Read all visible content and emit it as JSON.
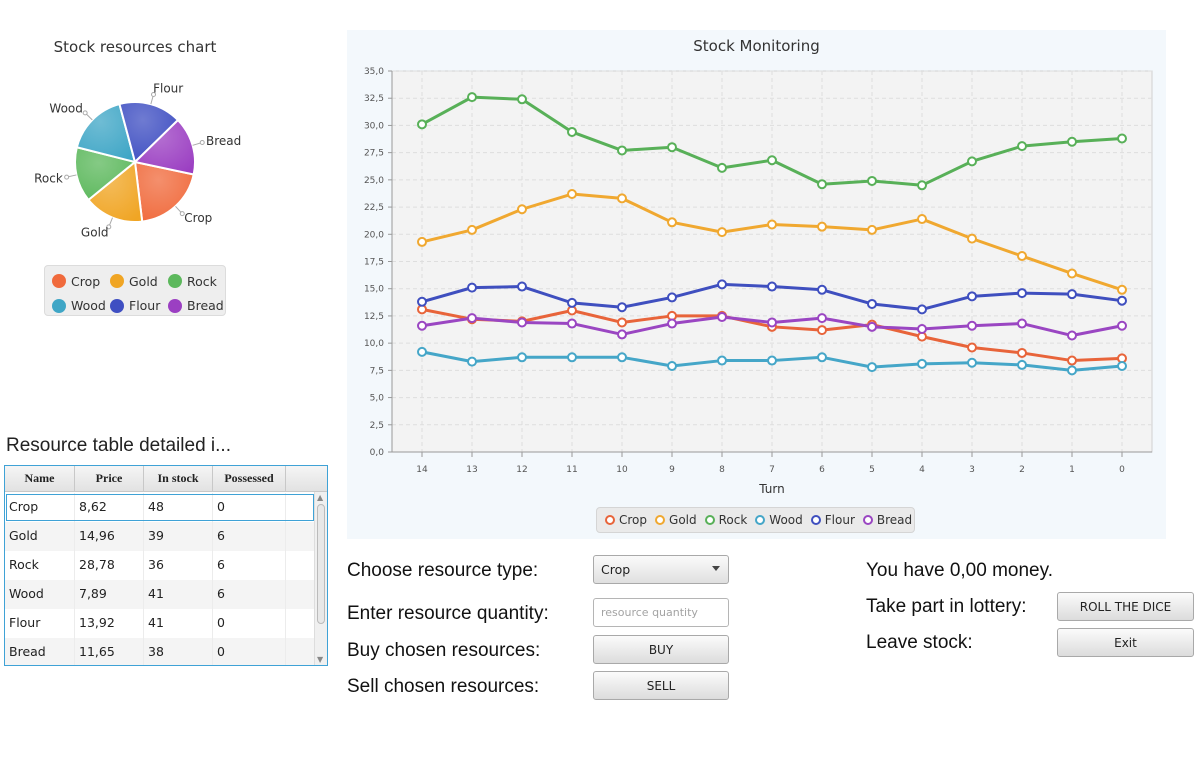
{
  "pie": {
    "title": "Stock resources chart",
    "chart_data": {
      "type": "pie",
      "title": "Stock resources chart",
      "slices": [
        {
          "label": "Crop",
          "value": 48,
          "color": "#f06a3c"
        },
        {
          "label": "Gold",
          "value": 39,
          "color": "#f0a524"
        },
        {
          "label": "Rock",
          "value": 36,
          "color": "#5cb85c"
        },
        {
          "label": "Wood",
          "value": 41,
          "color": "#3fa6c6"
        },
        {
          "label": "Flour",
          "value": 41,
          "color": "#3f4fc2"
        },
        {
          "label": "Bread",
          "value": 38,
          "color": "#9b3fc2"
        }
      ],
      "legend": "bottom"
    }
  },
  "line": {
    "title": "Stock Monitoring",
    "chart_data": {
      "type": "line",
      "title": "Stock Monitoring",
      "xlabel": "Turn",
      "ylabel": "",
      "x": [
        "14",
        "13",
        "12",
        "11",
        "10",
        "9",
        "8",
        "7",
        "6",
        "5",
        "4",
        "3",
        "2",
        "1",
        "0"
      ],
      "ylim": [
        0,
        35
      ],
      "yticks": [
        "0,0",
        "2,5",
        "5,0",
        "7,5",
        "10,0",
        "12,5",
        "15,0",
        "17,5",
        "20,0",
        "22,5",
        "25,0",
        "27,5",
        "30,0",
        "32,5",
        "35,0"
      ],
      "grid": true,
      "legend": "bottom",
      "series": [
        {
          "name": "Crop",
          "color": "#e8643a",
          "values": [
            13.1,
            12.2,
            12.0,
            13.0,
            11.9,
            12.5,
            12.5,
            11.5,
            11.2,
            11.7,
            10.6,
            9.6,
            9.1,
            8.4,
            8.6
          ]
        },
        {
          "name": "Gold",
          "color": "#f0a830",
          "values": [
            19.3,
            20.4,
            22.3,
            23.7,
            23.3,
            21.1,
            20.2,
            20.9,
            20.7,
            20.4,
            21.4,
            19.6,
            18.0,
            16.4,
            14.9
          ]
        },
        {
          "name": "Rock",
          "color": "#58b058",
          "values": [
            30.1,
            32.6,
            32.4,
            29.4,
            27.7,
            28.0,
            26.1,
            26.8,
            24.6,
            24.9,
            24.5,
            26.7,
            28.1,
            28.5,
            28.8
          ]
        },
        {
          "name": "Wood",
          "color": "#45a6c8",
          "values": [
            9.2,
            8.3,
            8.7,
            8.7,
            8.7,
            7.9,
            8.4,
            8.4,
            8.7,
            7.8,
            8.1,
            8.2,
            8.0,
            7.5,
            7.9
          ]
        },
        {
          "name": "Flour",
          "color": "#3f4fbf",
          "values": [
            13.8,
            15.1,
            15.2,
            13.7,
            13.3,
            14.2,
            15.4,
            15.2,
            14.9,
            13.6,
            13.1,
            14.3,
            14.6,
            14.5,
            13.9
          ]
        },
        {
          "name": "Bread",
          "color": "#9a46c2",
          "values": [
            11.6,
            12.3,
            11.9,
            11.8,
            10.8,
            11.8,
            12.4,
            11.9,
            12.3,
            11.5,
            11.3,
            11.6,
            11.8,
            10.7,
            11.6
          ]
        }
      ]
    }
  },
  "table": {
    "title": "Resource table detailed i...",
    "columns": [
      "Name",
      "Price",
      "In stock",
      "Possessed"
    ],
    "rows": [
      [
        "Crop",
        "8,62",
        "48",
        "0"
      ],
      [
        "Gold",
        "14,96",
        "39",
        "6"
      ],
      [
        "Rock",
        "28,78",
        "36",
        "6"
      ],
      [
        "Wood",
        "7,89",
        "41",
        "6"
      ],
      [
        "Flour",
        "13,92",
        "41",
        "0"
      ],
      [
        "Bread",
        "11,65",
        "38",
        "0"
      ]
    ]
  },
  "controls": {
    "choose_label": "Choose resource type:",
    "choose_value": "Crop",
    "quantity_label": "Enter resource quantity:",
    "quantity_placeholder": "resource quantity",
    "buy_label": "Buy chosen resources:",
    "buy_button": "BUY",
    "sell_label": "Sell chosen resources:",
    "sell_button": "SELL",
    "money_text": "You have 0,00 money.",
    "lottery_label": "Take part in lottery:",
    "lottery_button": "ROLL THE DICE",
    "leave_label": "Leave stock:",
    "exit_button": "Exit"
  }
}
